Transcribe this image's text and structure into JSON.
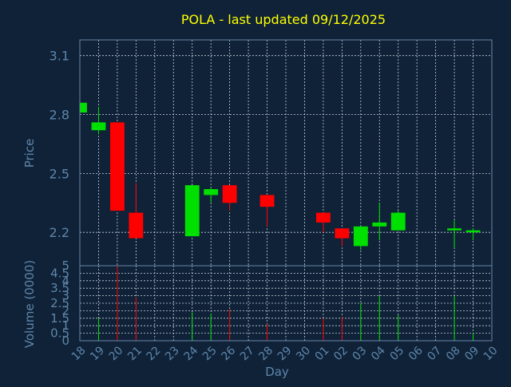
{
  "title": "POLA - last updated 09/12/2025",
  "colors": {
    "background": "#0f2238",
    "title": "#ffff00",
    "axis_text": "#5f86aa",
    "grid": "#c8d2dc",
    "up": "#00e000",
    "down": "#ff0000"
  },
  "chart_data": [
    {
      "type": "candlestick",
      "ylabel": "Price",
      "ylim": [
        2.03,
        3.18
      ],
      "yticks": [
        2.2,
        2.5,
        2.8,
        3.1
      ],
      "grid": true,
      "x": [
        "18",
        "19",
        "20",
        "21",
        "22",
        "23",
        "24",
        "25",
        "26",
        "27",
        "28",
        "29",
        "30",
        "01",
        "02",
        "03",
        "04",
        "05",
        "06",
        "07",
        "08",
        "09",
        "10"
      ],
      "candles": [
        {
          "x": "18",
          "open": 2.81,
          "high": 2.86,
          "low": 2.81,
          "close": 2.86,
          "dir": "up"
        },
        {
          "x": "19",
          "open": 2.72,
          "high": 2.84,
          "low": 2.7,
          "close": 2.76,
          "dir": "up"
        },
        {
          "x": "20",
          "open": 2.76,
          "high": 2.76,
          "low": 2.31,
          "close": 2.31,
          "dir": "down"
        },
        {
          "x": "21",
          "open": 2.3,
          "high": 2.45,
          "low": 2.17,
          "close": 2.17,
          "dir": "down"
        },
        {
          "x": "24",
          "open": 2.18,
          "high": 2.44,
          "low": 2.18,
          "close": 2.44,
          "dir": "up"
        },
        {
          "x": "25",
          "open": 2.39,
          "high": 2.43,
          "low": 2.35,
          "close": 2.42,
          "dir": "up"
        },
        {
          "x": "26",
          "open": 2.44,
          "high": 2.44,
          "low": 2.31,
          "close": 2.35,
          "dir": "down"
        },
        {
          "x": "28",
          "open": 2.39,
          "high": 2.39,
          "low": 2.23,
          "close": 2.33,
          "dir": "down"
        },
        {
          "x": "01",
          "open": 2.3,
          "high": 2.3,
          "low": 2.2,
          "close": 2.25,
          "dir": "down"
        },
        {
          "x": "02",
          "open": 2.22,
          "high": 2.22,
          "low": 2.13,
          "close": 2.17,
          "dir": "down"
        },
        {
          "x": "03",
          "open": 2.13,
          "high": 2.23,
          "low": 2.11,
          "close": 2.23,
          "dir": "up"
        },
        {
          "x": "04",
          "open": 2.23,
          "high": 2.35,
          "low": 2.16,
          "close": 2.25,
          "dir": "up"
        },
        {
          "x": "05",
          "open": 2.21,
          "high": 2.31,
          "low": 2.21,
          "close": 2.3,
          "dir": "up"
        },
        {
          "x": "08",
          "open": 2.21,
          "high": 2.26,
          "low": 2.12,
          "close": 2.22,
          "dir": "up"
        },
        {
          "x": "09",
          "open": 2.2,
          "high": 2.22,
          "low": 2.16,
          "close": 2.21,
          "dir": "up"
        }
      ]
    },
    {
      "type": "bar",
      "ylabel": "Volume (0000)",
      "xlabel": "Day",
      "ylim": [
        0,
        5
      ],
      "yticks": [
        "0",
        "0.5",
        "1",
        "1.5",
        "2",
        "2.5",
        "3",
        "3.5",
        "4",
        "4.5",
        "5"
      ],
      "grid": true,
      "bars": [
        {
          "x": "19",
          "value": 1.5,
          "dir": "up"
        },
        {
          "x": "20",
          "value": 5.0,
          "dir": "down"
        },
        {
          "x": "21",
          "value": 2.9,
          "dir": "down"
        },
        {
          "x": "24",
          "value": 1.9,
          "dir": "up"
        },
        {
          "x": "25",
          "value": 1.8,
          "dir": "up"
        },
        {
          "x": "26",
          "value": 2.1,
          "dir": "down"
        },
        {
          "x": "28",
          "value": 1.1,
          "dir": "down"
        },
        {
          "x": "01",
          "value": 1.5,
          "dir": "down"
        },
        {
          "x": "02",
          "value": 1.6,
          "dir": "down"
        },
        {
          "x": "03",
          "value": 2.5,
          "dir": "up"
        },
        {
          "x": "04",
          "value": 3.0,
          "dir": "up"
        },
        {
          "x": "05",
          "value": 1.7,
          "dir": "up"
        },
        {
          "x": "08",
          "value": 3.0,
          "dir": "up"
        },
        {
          "x": "09",
          "value": 0.5,
          "dir": "up"
        }
      ]
    }
  ]
}
